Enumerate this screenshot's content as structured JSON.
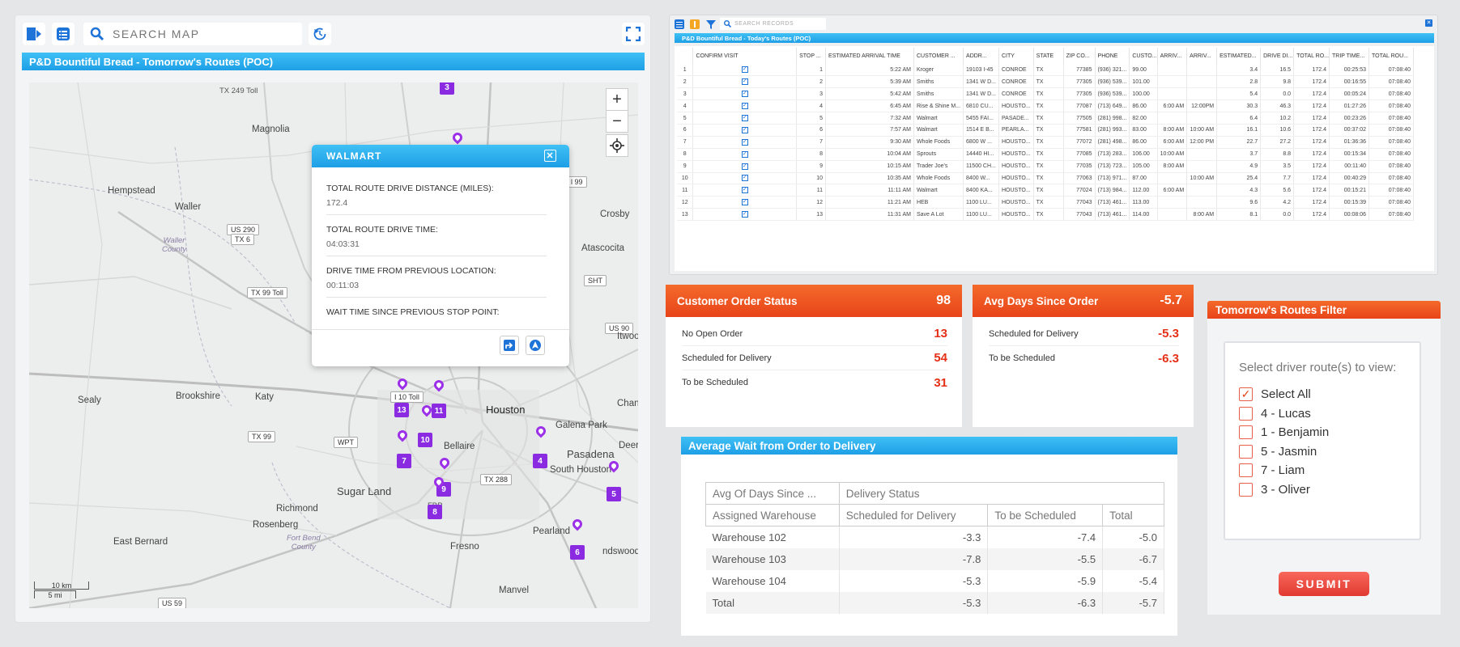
{
  "map_panel": {
    "search_placeholder": "SEARCH MAP",
    "title": "P&D Bountiful Bread - Tomorrow's Routes (POC)",
    "zoom_in": "+",
    "zoom_out": "−",
    "scale_km": "10 km",
    "scale_mi": "5 mi",
    "labels": {
      "tx249": "TX 249 Toll",
      "magnolia": "Magnolia",
      "hempstead": "Hempstead",
      "waller": "Waller",
      "us290": "US 290",
      "tx6": "TX 6",
      "wallercounty": "Waller\nCounty",
      "tx99toll": "TX 99 Toll",
      "sealy": "Sealy",
      "brookshire": "Brookshire",
      "katy": "Katy",
      "tx99": "TX 99",
      "wpt": "WPT",
      "sugarland": "Sugar Land",
      "richmond": "Richmond",
      "rosenberg": "Rosenberg",
      "fortbend": "Fort Bend\nCounty",
      "eastbernard": "East Bernard",
      "us59": "US 59",
      "houston": "Houston",
      "i10toll": "I 10 Toll",
      "bellaire": "Bellaire",
      "tx288": "TX 288",
      "fbp": "FBP",
      "fresno": "Fresno",
      "manvel": "Manvel",
      "pearland": "Pearland",
      "friendswood": "ndswood",
      "pasadena": "Pasadena",
      "southhouston": "South Houston",
      "galenapark": "Galena Park",
      "atascocita": "Atascocita",
      "crosby": "Crosby",
      "sht": "SHT",
      "us90": "US 90",
      "deer": "Deer",
      "channelview": "Chanr",
      "ltwood": "Itwood",
      "l99": "l 99"
    },
    "stops": [
      "3",
      "13",
      "11",
      "10",
      "7",
      "9",
      "8",
      "4",
      "5",
      "6"
    ]
  },
  "popup": {
    "title": "WALMART",
    "fields": [
      {
        "label": "TOTAL ROUTE DRIVE DISTANCE (MILES):",
        "value": "172.4"
      },
      {
        "label": "TOTAL ROUTE DRIVE TIME:",
        "value": "04:03:31"
      },
      {
        "label": "DRIVE TIME FROM PREVIOUS LOCATION:",
        "value": "00:11:03"
      },
      {
        "label": "WAIT TIME SINCE PREVIOUS STOP POINT:",
        "value": ""
      }
    ]
  },
  "records": {
    "search_placeholder": "SEARCH RECORDS",
    "title": "P&D Bountiful Bread - Today's Routes (POC)",
    "columns": [
      "",
      "CONFIRM VISIT",
      "STOP ...",
      "ESTIMATED ARRIVAL TIME",
      "CUSTOMER ...",
      "ADDR...",
      "CITY",
      "STATE",
      "ZIP CO...",
      "PHONE",
      "CUSTO...",
      "ARRIV...",
      "ARRIV...",
      "ESTIMATED...",
      "DRIVE DI...",
      "TOTAL RO...",
      "TRIP TIME...",
      "TOTAL ROU..."
    ],
    "rows": [
      [
        "1",
        "1",
        "5:22 AM",
        "Kroger",
        "19103 I-45",
        "CONROE",
        "TX",
        "77385",
        "(936) 321...",
        "99.00",
        "",
        "",
        "3.4",
        "16.5",
        "172.4",
        "00:25:53",
        "07:08:40"
      ],
      [
        "2",
        "2",
        "5:39 AM",
        "Smiths",
        "1341 W D...",
        "CONROE",
        "TX",
        "77305",
        "(936) 539...",
        "101.00",
        "",
        "",
        "2.8",
        "9.8",
        "172.4",
        "00:16:55",
        "07:08:40"
      ],
      [
        "3",
        "3",
        "5:42 AM",
        "Smiths",
        "1341 W D...",
        "CONROE",
        "TX",
        "77305",
        "(936) 539...",
        "100.00",
        "",
        "",
        "5.4",
        "0.0",
        "172.4",
        "00:05:24",
        "07:08:40"
      ],
      [
        "4",
        "4",
        "6:45 AM",
        "Rise & Shine M...",
        "6810 CU...",
        "HOUSTO...",
        "TX",
        "77087",
        "(713) 649...",
        "86.00",
        "6:00 AM",
        "12:00PM",
        "30.3",
        "46.3",
        "172.4",
        "01:27:26",
        "07:08:40"
      ],
      [
        "5",
        "5",
        "7:32 AM",
        "Walmart",
        "5455 FAI...",
        "PASADE...",
        "TX",
        "77505",
        "(281) 998...",
        "82.00",
        "",
        "",
        "6.4",
        "10.2",
        "172.4",
        "00:23:26",
        "07:08:40"
      ],
      [
        "6",
        "6",
        "7:57 AM",
        "Walmart",
        "1514 E B...",
        "PEARLA...",
        "TX",
        "77581",
        "(281) 993...",
        "83.00",
        "8:00 AM",
        "10:00 AM",
        "16.1",
        "10.6",
        "172.4",
        "00:37:02",
        "07:08:40"
      ],
      [
        "7",
        "7",
        "9:30 AM",
        "Whole Foods",
        "6800 W ...",
        "HOUSTO...",
        "TX",
        "77072",
        "(281) 498...",
        "86.00",
        "6:00 AM",
        "12:00 PM",
        "22.7",
        "27.2",
        "172.4",
        "01:36:36",
        "07:08:40"
      ],
      [
        "8",
        "8",
        "10:04 AM",
        "Sprouts",
        "14440 HI...",
        "HOUSTO...",
        "TX",
        "77085",
        "(713) 283...",
        "106.00",
        "10:00 AM",
        "",
        "3.7",
        "8.8",
        "172.4",
        "00:15:34",
        "07:08:40"
      ],
      [
        "9",
        "9",
        "10:15 AM",
        "Trader Joe's",
        "11500 CH...",
        "HOUSTO...",
        "TX",
        "77035",
        "(713) 723...",
        "105.00",
        "8:00 AM",
        "",
        "4.9",
        "3.5",
        "172.4",
        "00:11:40",
        "07:08:40"
      ],
      [
        "10",
        "10",
        "10:35 AM",
        "Whole Foods",
        "8400 W...",
        "HOUSTO...",
        "TX",
        "77063",
        "(713) 971...",
        "87.00",
        "",
        "10:00 AM",
        "25.4",
        "7.7",
        "172.4",
        "00:40:29",
        "07:08:40"
      ],
      [
        "11",
        "11",
        "11:11 AM",
        "Walmart",
        "8400 KA...",
        "HOUSTO...",
        "TX",
        "77024",
        "(713) 984...",
        "112.00",
        "6:00 AM",
        "",
        "4.3",
        "5.6",
        "172.4",
        "00:15:21",
        "07:08:40"
      ],
      [
        "12",
        "12",
        "11:21 AM",
        "HEB",
        "1100 LU...",
        "HOUSTO...",
        "TX",
        "77043",
        "(713) 461...",
        "113.00",
        "",
        "",
        "9.6",
        "4.2",
        "172.4",
        "00:15:39",
        "07:08:40"
      ],
      [
        "13",
        "13",
        "11:31 AM",
        "Save A Lot",
        "1100 LU...",
        "HOUSTO...",
        "TX",
        "77043",
        "(713) 461...",
        "114.00",
        "",
        "8:00 AM",
        "8.1",
        "0.0",
        "172.4",
        "00:08:06",
        "07:08:40"
      ]
    ]
  },
  "customer_order_status": {
    "title": "Customer Order Status",
    "total": "98",
    "rows": [
      {
        "label": "No Open Order",
        "value": "13"
      },
      {
        "label": "Scheduled for Delivery",
        "value": "54"
      },
      {
        "label": "To be Scheduled",
        "value": "31"
      }
    ]
  },
  "avg_days": {
    "title": "Avg Days Since Order",
    "total": "-5.7",
    "rows": [
      {
        "label": "Scheduled for Delivery",
        "value": "-5.3"
      },
      {
        "label": "To be Scheduled",
        "value": "-6.3"
      }
    ]
  },
  "avg_wait": {
    "title": "Average Wait from Order to Delivery",
    "header1": [
      "Avg Of Days Since ...",
      "Delivery Status"
    ],
    "header2": [
      "Assigned Warehouse",
      "Scheduled for Delivery",
      "To be Scheduled",
      "Total"
    ],
    "rows": [
      [
        "Warehouse 102",
        "-3.3",
        "-7.4",
        "-5.0"
      ],
      [
        "Warehouse 103",
        "-7.8",
        "-5.5",
        "-6.7"
      ],
      [
        "Warehouse 104",
        "-5.3",
        "-5.9",
        "-5.4"
      ],
      [
        "Total",
        "-5.3",
        "-6.3",
        "-5.7"
      ]
    ]
  },
  "filter": {
    "title": "Tomorrow's Routes Filter",
    "prompt": "Select driver route(s) to view:",
    "options": [
      {
        "label": "Select All",
        "checked": true
      },
      {
        "label": "4 - Lucas",
        "checked": false
      },
      {
        "label": "1 - Benjamin",
        "checked": false
      },
      {
        "label": "5 - Jasmin",
        "checked": false
      },
      {
        "label": "7 - Liam",
        "checked": false
      },
      {
        "label": "3 - Oliver",
        "checked": false
      }
    ],
    "submit": "SUBMIT"
  },
  "colors": {
    "accent_blue": "#1e9fe6",
    "accent_orange": "#e8441a",
    "stop_purple": "#8a2be2",
    "value_red": "#e53017"
  }
}
